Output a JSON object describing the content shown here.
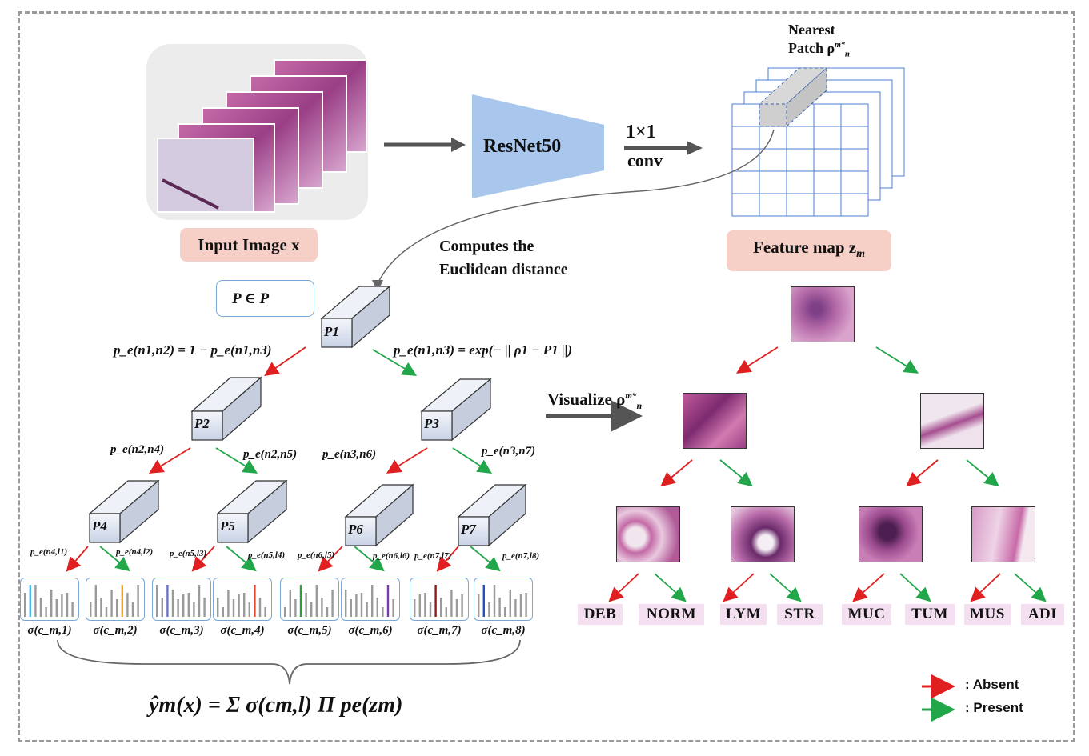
{
  "input_label": "Input Image x",
  "backbone_label": "ResNet50",
  "conv_label_top": "1×1",
  "conv_label_bottom": "conv",
  "nearest_patch_line1": "Nearest",
  "nearest_patch_line2": "Patch ρ",
  "feature_map_label": "Feature map z",
  "feature_map_sub": "m",
  "computes_line1": "Computes the",
  "computes_line2": "Euclidean distance",
  "prototype_set": "P ∈ P",
  "visualize_label": "Visualize ρ",
  "nodes": [
    "P1",
    "P2",
    "P3",
    "P4",
    "P5",
    "P6",
    "P7"
  ],
  "eq_left": "p_e(n1,n2) = 1 − p_e(n1,n3)",
  "eq_right": "p_e(n1,n3) = exp(− || ρ1 − P1 ||)",
  "edge_labels_l2": [
    "p_e(n2,n4)",
    "p_e(n2,n5)",
    "p_e(n3,n6)",
    "p_e(n3,n7)"
  ],
  "edge_labels_l3": [
    "p_e(n4,l1)",
    "p_e(n4,l2)",
    "p_e(n5,l3)",
    "p_e(n5,l4)",
    "p_e(n6,l5)",
    "p_e(n6,l6)",
    "p_e(n7,l7)",
    "p_e(n7,l8)"
  ],
  "sigmas": [
    "σ(c_m,1)",
    "σ(c_m,2)",
    "σ(c_m,3)",
    "σ(c_m,4)",
    "σ(c_m,5)",
    "σ(c_m,6)",
    "σ(c_m,7)",
    "σ(c_m,8)"
  ],
  "hist_colors": [
    "#45b4e6",
    "#f2a31a",
    "#6a72c8",
    "#e0452e",
    "#2f9a3a",
    "#7a3aa8",
    "#8b1c1c",
    "#2350b8"
  ],
  "final_formula": "ŷm(x) = Σ σ(cm,l) Π pe(zm)",
  "classes": [
    "DEB",
    "NORM",
    "LYM",
    "STR",
    "MUC",
    "TUM",
    "MUS",
    "ADI"
  ],
  "legend": {
    "absent": ": Absent",
    "present": ": Present",
    "absent_color": "#e02020",
    "present_color": "#21a64a"
  }
}
